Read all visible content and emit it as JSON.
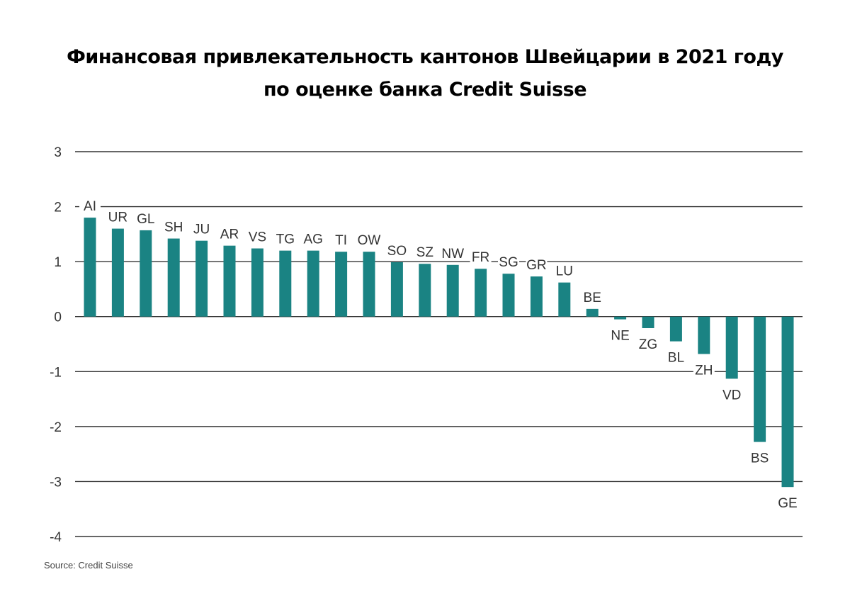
{
  "title": {
    "line1": "Финансовая привлекательность кантонов Швейцарии в 2021 году",
    "line2": "по оценке банка Credit Suisse"
  },
  "source": "Source: Credit Suisse",
  "colors": {
    "bar": "#1a8383",
    "grid": "#333333",
    "text": "#333333"
  },
  "chart_data": {
    "type": "bar",
    "title": "Финансовая привлекательность кантонов Швейцарии в 2021 году по оценке банка Credit Suisse",
    "xlabel": "",
    "ylabel": "",
    "ylim": [
      -4,
      3
    ],
    "yticks": [
      3,
      2,
      1,
      0,
      -1,
      -2,
      -3,
      -4
    ],
    "grid": true,
    "legend": "none",
    "categories": [
      "AI",
      "UR",
      "GL",
      "SH",
      "JU",
      "AR",
      "VS",
      "TG",
      "AG",
      "TI",
      "OW",
      "SO",
      "SZ",
      "NW",
      "FR",
      "SG",
      "GR",
      "LU",
      "BE",
      "NE",
      "ZG",
      "BL",
      "ZH",
      "VD",
      "BS",
      "GE"
    ],
    "values": [
      1.8,
      1.6,
      1.57,
      1.42,
      1.38,
      1.29,
      1.24,
      1.2,
      1.2,
      1.18,
      1.18,
      0.99,
      0.96,
      0.94,
      0.87,
      0.78,
      0.73,
      0.62,
      0.14,
      -0.05,
      -0.21,
      -0.45,
      -0.68,
      -1.13,
      -2.28,
      -3.1
    ]
  }
}
